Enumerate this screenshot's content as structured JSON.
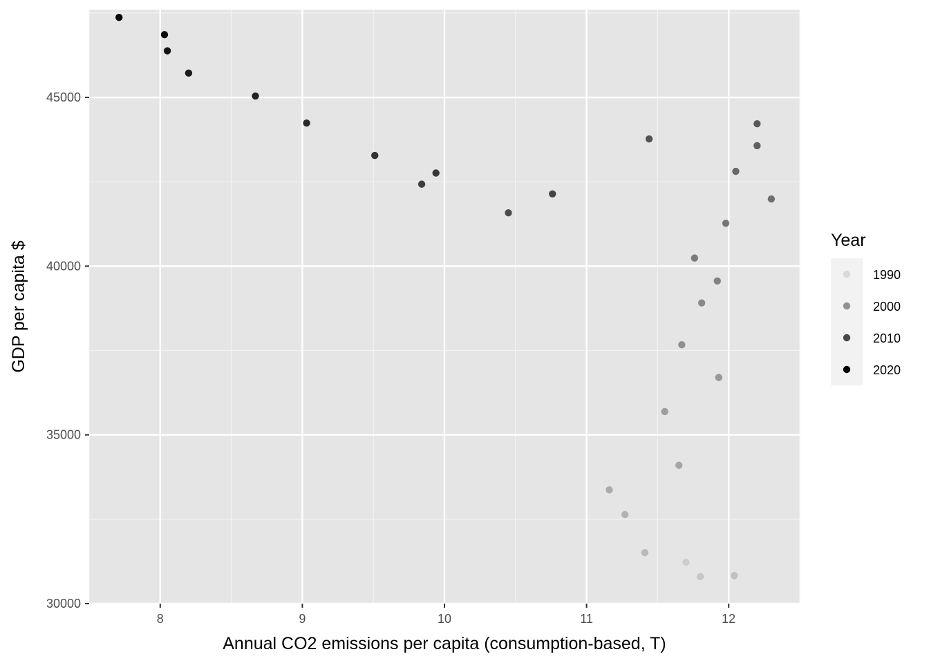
{
  "chart_data": {
    "type": "scatter",
    "xlabel": "Annual CO2 emissions per capita (consumption-based, T)",
    "ylabel": "GDP per capita $",
    "xlim": [
      7.5,
      12.5
    ],
    "ylim": [
      30000,
      47600
    ],
    "x_ticks": [
      8,
      9,
      10,
      11,
      12
    ],
    "y_ticks": [
      30000,
      35000,
      40000,
      45000
    ],
    "grid": true,
    "legend": {
      "title": "Year",
      "placement": "right",
      "entries": [
        {
          "label": "1990",
          "year": 1990
        },
        {
          "label": "2000",
          "year": 2000
        },
        {
          "label": "2010",
          "year": 2010
        },
        {
          "label": "2020",
          "year": 2020
        }
      ]
    },
    "points": [
      {
        "x": 11.7,
        "y": 31230,
        "year": 1990
      },
      {
        "x": 11.8,
        "y": 30800,
        "year": 1991
      },
      {
        "x": 12.04,
        "y": 30830,
        "year": 1992
      },
      {
        "x": 11.41,
        "y": 31510,
        "year": 1993
      },
      {
        "x": 11.27,
        "y": 32640,
        "year": 1994
      },
      {
        "x": 11.16,
        "y": 33370,
        "year": 1995
      },
      {
        "x": 11.65,
        "y": 34100,
        "year": 1996
      },
      {
        "x": 11.55,
        "y": 35690,
        "year": 1997
      },
      {
        "x": 11.93,
        "y": 36700,
        "year": 1998
      },
      {
        "x": 11.67,
        "y": 37670,
        "year": 1999
      },
      {
        "x": 11.81,
        "y": 38910,
        "year": 2000
      },
      {
        "x": 11.92,
        "y": 39560,
        "year": 2001
      },
      {
        "x": 11.76,
        "y": 40240,
        "year": 2002
      },
      {
        "x": 11.98,
        "y": 41270,
        "year": 2003
      },
      {
        "x": 12.3,
        "y": 41990,
        "year": 2004
      },
      {
        "x": 12.05,
        "y": 42810,
        "year": 2005
      },
      {
        "x": 12.2,
        "y": 43570,
        "year": 2006
      },
      {
        "x": 12.2,
        "y": 44220,
        "year": 2007
      },
      {
        "x": 11.44,
        "y": 43770,
        "year": 2008
      },
      {
        "x": 10.45,
        "y": 41580,
        "year": 2009
      },
      {
        "x": 10.76,
        "y": 42140,
        "year": 2010
      },
      {
        "x": 9.84,
        "y": 42430,
        "year": 2011
      },
      {
        "x": 9.94,
        "y": 42760,
        "year": 2012
      },
      {
        "x": 9.51,
        "y": 43280,
        "year": 2013
      },
      {
        "x": 9.03,
        "y": 44240,
        "year": 2014
      },
      {
        "x": 8.67,
        "y": 45040,
        "year": 2015
      },
      {
        "x": 8.2,
        "y": 45720,
        "year": 2016
      },
      {
        "x": 8.05,
        "y": 46380,
        "year": 2017
      },
      {
        "x": 8.03,
        "y": 46860,
        "year": 2018
      },
      {
        "x": 7.71,
        "y": 47370,
        "year": 2019
      }
    ]
  }
}
